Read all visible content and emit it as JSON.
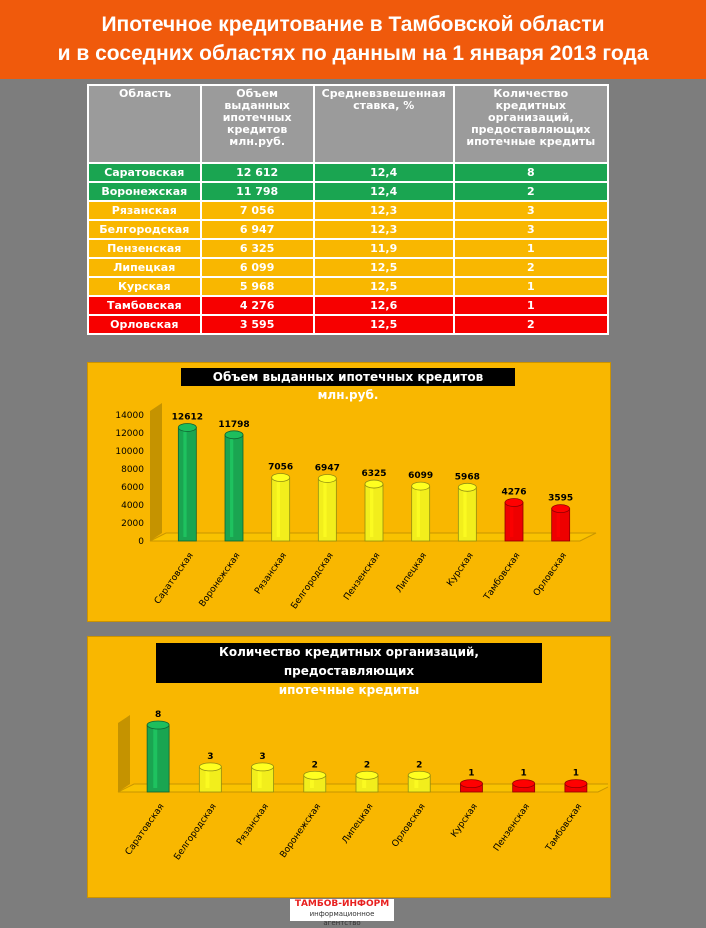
{
  "title": {
    "line1": "Ипотечное кредитование в Тамбовской области",
    "line2": "и в соседних областях по данным на 1 января 2013 года"
  },
  "table": {
    "headers": [
      "Область",
      "Объем выданных ипотечных кредитов млн.руб.",
      "Средневзвешенная ставка, %",
      "Количество кредитных организаций, предоставляющих ипотечные кредиты"
    ],
    "rows": [
      {
        "region": "Саратовская",
        "volume": "12 612",
        "rate": "12,4",
        "count": "8",
        "status": "green"
      },
      {
        "region": "Воронежская",
        "volume": "11 798",
        "rate": "12,4",
        "count": "2",
        "status": "green"
      },
      {
        "region": "Рязанская",
        "volume": "7 056",
        "rate": "12,3",
        "count": "3",
        "status": "yellow"
      },
      {
        "region": "Белгородская",
        "volume": "6 947",
        "rate": "12,3",
        "count": "3",
        "status": "yellow"
      },
      {
        "region": "Пензенская",
        "volume": "6 325",
        "rate": "11,9",
        "count": "1",
        "status": "yellow"
      },
      {
        "region": "Липецкая",
        "volume": "6 099",
        "rate": "12,5",
        "count": "2",
        "status": "yellow"
      },
      {
        "region": "Курская",
        "volume": "5 968",
        "rate": "12,5",
        "count": "1",
        "status": "yellow"
      },
      {
        "region": "Тамбовская",
        "volume": "4 276",
        "rate": "12,6",
        "count": "1",
        "status": "red"
      },
      {
        "region": "Орловская",
        "volume": "3 595",
        "rate": "12,5",
        "count": "2",
        "status": "red"
      }
    ]
  },
  "colors": {
    "green": "#1aa551",
    "yellow": "#f2ee1c",
    "red": "#ee0000",
    "panel": "#f9b700",
    "header": "#f05a0c"
  },
  "chart_data": [
    {
      "type": "bar",
      "title": "Объем выданных ипотечных кредитов млн.руб.",
      "categories": [
        "Саратовская",
        "Воронежская",
        "Рязанская",
        "Белгородская",
        "Пензенская",
        "Липецкая",
        "Курская",
        "Тамбовская",
        "Орловская"
      ],
      "values": [
        12612,
        11798,
        7056,
        6947,
        6325,
        6099,
        5968,
        4276,
        3595
      ],
      "bar_colors": [
        "green",
        "green",
        "yellow",
        "yellow",
        "yellow",
        "yellow",
        "yellow",
        "red",
        "red"
      ],
      "yticks": [
        0,
        2000,
        4000,
        6000,
        8000,
        10000,
        12000,
        14000
      ],
      "ylim": [
        0,
        14000
      ],
      "data_labels": true,
      "grid": false
    },
    {
      "type": "bar",
      "title": "Количество кредитных организаций, предоставляющих ипотечные кредиты",
      "title_lines": [
        "Количество кредитных организаций, предоставляющих",
        "ипотечные кредиты"
      ],
      "categories": [
        "Саратовская",
        "Белгородская",
        "Рязанская",
        "Воронежская",
        "Липецкая",
        "Орловская",
        "Курская",
        "Пензенская",
        "Тамбовская"
      ],
      "values": [
        8,
        3,
        3,
        2,
        2,
        2,
        1,
        1,
        1
      ],
      "bar_colors": [
        "green",
        "yellow",
        "yellow",
        "yellow",
        "yellow",
        "yellow",
        "red",
        "red",
        "red"
      ],
      "ylim": [
        0,
        8
      ],
      "data_labels": true,
      "grid": false
    }
  ],
  "logo": {
    "name": "ТАМБОВ-ИНФОРМ",
    "tagline": "информационное агентство"
  }
}
